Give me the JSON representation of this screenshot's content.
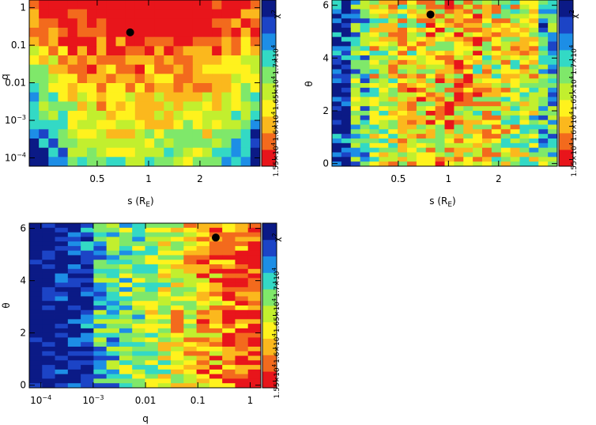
{
  "colors": {
    "colormap": [
      "#e8151b",
      "#f36a1d",
      "#fbb81d",
      "#fff21d",
      "#c2ef2e",
      "#7fe86a",
      "#33d9c5",
      "#1d8ee6",
      "#1c44c6",
      "#0b1a86"
    ],
    "best_fit_marker": "#000000"
  },
  "chart_data": [
    {
      "type": "heatmap",
      "title": "",
      "xlabel": "s (R",
      "xlabel_sub": "E",
      "xlabel_close": ")",
      "ylabel": "q",
      "x_scale": "log",
      "y_scale": "log",
      "xlim": [
        0.2,
        4.5
      ],
      "ylim": [
        6e-05,
        1.6
      ],
      "x_ticks": [
        {
          "value": 0.5,
          "label": "0.5"
        },
        {
          "value": 1,
          "label": "1"
        },
        {
          "value": 2,
          "label": "2"
        }
      ],
      "y_ticks": [
        {
          "value": 1,
          "label": "1"
        },
        {
          "value": 0.1,
          "label": "0.1"
        },
        {
          "value": 0.01,
          "label": "0.01"
        },
        {
          "value": 0.001,
          "label": "10",
          "sup": "−3"
        },
        {
          "value": 0.0001,
          "label": "10",
          "sup": "−4"
        }
      ],
      "grid": "24x18",
      "best_fit": {
        "x": 0.78,
        "y": 0.22
      },
      "colorbar": {
        "label": "χ",
        "label_sup": "2",
        "range": [
          15400,
          17900
        ],
        "ticks": [
          {
            "value": 15500,
            "label": "1.55×10",
            "sup": "4"
          },
          {
            "value": 16000,
            "label": "1.6×10",
            "sup": "4"
          },
          {
            "value": 16500,
            "label": "1.65×10",
            "sup": "4"
          },
          {
            "value": 17000,
            "label": "1.7×10",
            "sup": "4"
          }
        ]
      }
    },
    {
      "type": "heatmap",
      "title": "",
      "xlabel": "s (R",
      "xlabel_sub": "E",
      "xlabel_close": ")",
      "ylabel": "θ",
      "x_scale": "log",
      "y_scale": "linear",
      "xlim": [
        0.2,
        4.5
      ],
      "ylim": [
        -0.1,
        6.2
      ],
      "x_ticks": [
        {
          "value": 0.5,
          "label": "0.5"
        },
        {
          "value": 1,
          "label": "1"
        },
        {
          "value": 2,
          "label": "2"
        }
      ],
      "y_ticks": [
        {
          "value": 0,
          "label": "0"
        },
        {
          "value": 2,
          "label": "2"
        },
        {
          "value": 4,
          "label": "4"
        },
        {
          "value": 6,
          "label": "6"
        }
      ],
      "grid": "24x36",
      "best_fit": {
        "x": 0.78,
        "y": 5.65
      },
      "colorbar": {
        "label": "χ",
        "label_sup": "2",
        "range": [
          15400,
          17900
        ],
        "ticks": [
          {
            "value": 15500,
            "label": "1.55×10",
            "sup": "4"
          },
          {
            "value": 16000,
            "label": "1.6×10",
            "sup": "4"
          },
          {
            "value": 16500,
            "label": "1.65×10",
            "sup": "4"
          },
          {
            "value": 17000,
            "label": "1.7×10",
            "sup": "4"
          }
        ]
      }
    },
    {
      "type": "heatmap",
      "title": "",
      "xlabel": "q",
      "ylabel": "θ",
      "x_scale": "log",
      "y_scale": "linear",
      "xlim": [
        6e-05,
        1.6
      ],
      "ylim": [
        -0.1,
        6.2
      ],
      "x_ticks": [
        {
          "value": 0.0001,
          "label": "10",
          "sup": "−4"
        },
        {
          "value": 0.001,
          "label": "10",
          "sup": "−3"
        },
        {
          "value": 0.01,
          "label": "0.01"
        },
        {
          "value": 0.1,
          "label": "0.1"
        },
        {
          "value": 1,
          "label": "1"
        }
      ],
      "y_ticks": [
        {
          "value": 0,
          "label": "0"
        },
        {
          "value": 2,
          "label": "2"
        },
        {
          "value": 4,
          "label": "4"
        },
        {
          "value": 6,
          "label": "6"
        }
      ],
      "grid": "18x36",
      "best_fit": {
        "x": 0.22,
        "y": 5.65
      },
      "colorbar": {
        "label": "χ",
        "label_sup": "2",
        "range": [
          15400,
          17900
        ],
        "ticks": [
          {
            "value": 15500,
            "label": "1.55×10",
            "sup": "4"
          },
          {
            "value": 16000,
            "label": "1.6×10",
            "sup": "4"
          },
          {
            "value": 16500,
            "label": "1.65×10",
            "sup": "4"
          },
          {
            "value": 17000,
            "label": "1.7×10",
            "sup": "4"
          }
        ]
      }
    }
  ]
}
